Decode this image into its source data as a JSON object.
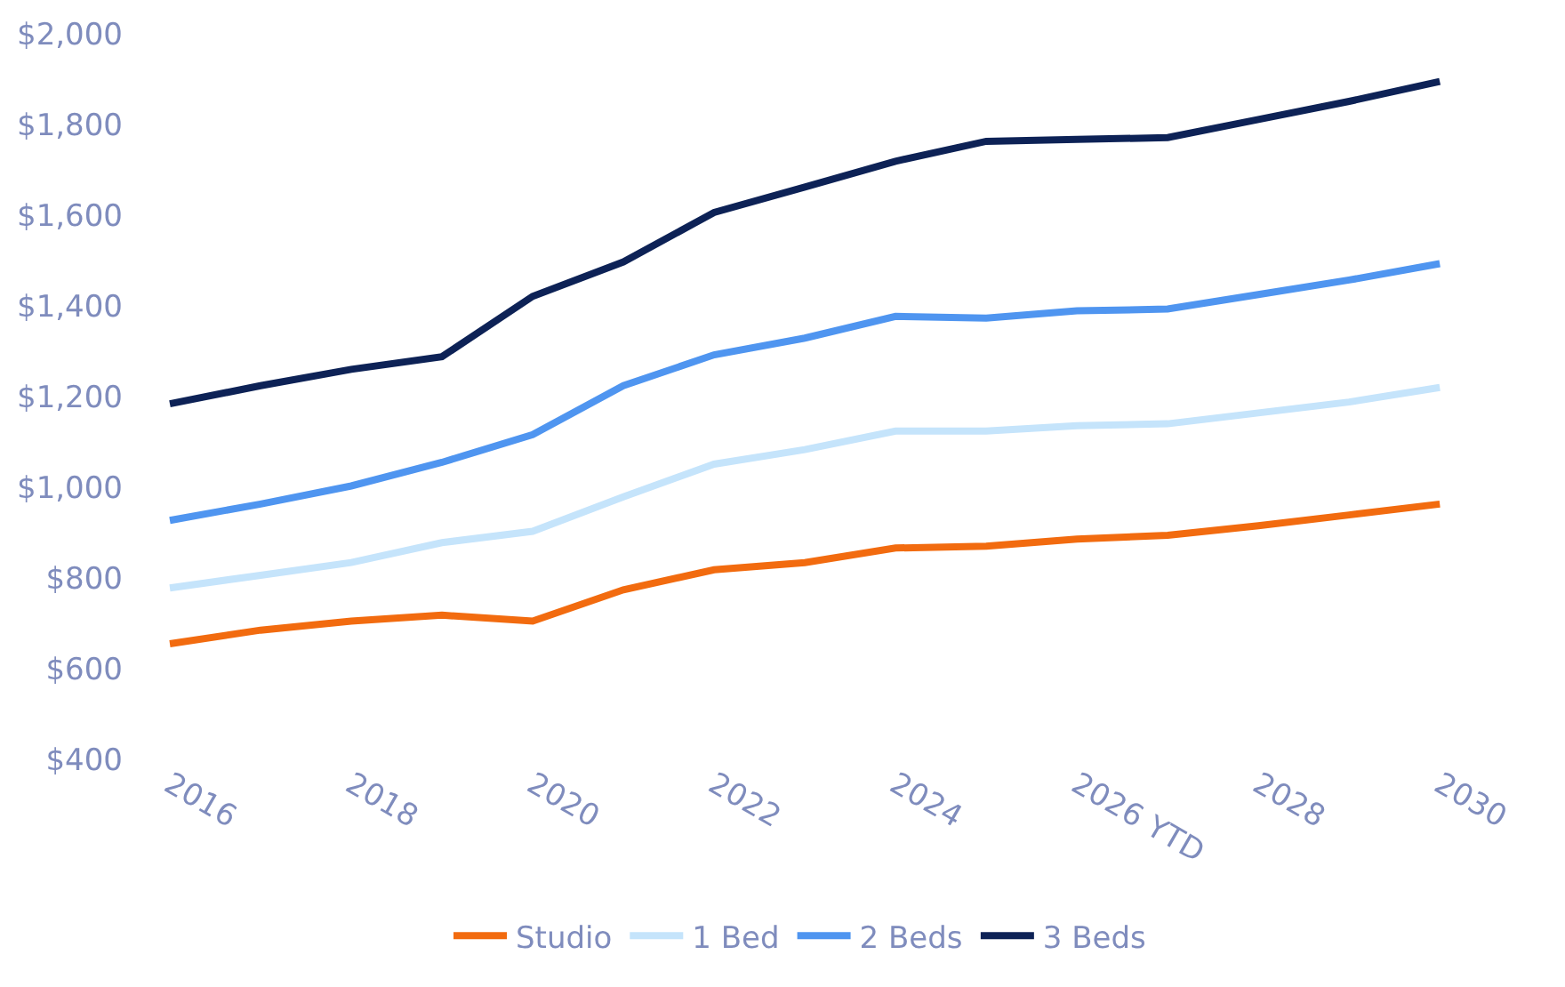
{
  "chart_data": {
    "type": "line",
    "categories": [
      "2016",
      null,
      "2018",
      null,
      "2020",
      null,
      "2022",
      null,
      "2024",
      null,
      "2026 YTD",
      null,
      "2028",
      null,
      "2030"
    ],
    "series": [
      {
        "name": "Studio",
        "color": "#f26b0f",
        "values": [
          655,
          685,
          705,
          718,
          705,
          774,
          818,
          834,
          866,
          870,
          886,
          894,
          915,
          939,
          963
        ]
      },
      {
        "name": "1 Bed",
        "color": "#c5e4fb",
        "values": [
          778,
          806,
          834,
          878,
          903,
          979,
          1051,
          1083,
          1124,
          1124,
          1136,
          1140,
          1164,
          1188,
          1220
        ]
      },
      {
        "name": "2 Beds",
        "color": "#4f95f0",
        "values": [
          927,
          963,
          1003,
          1055,
          1116,
          1224,
          1292,
          1329,
          1377,
          1373,
          1389,
          1393,
          1425,
          1457,
          1493
        ]
      },
      {
        "name": "3 Beds",
        "color": "#0d2256",
        "values": [
          1184,
          1224,
          1260,
          1288,
          1421,
          1497,
          1606,
          1662,
          1719,
          1763,
          1767,
          1771,
          1811,
          1851,
          1895
        ]
      }
    ],
    "ylim": [
      400,
      2000
    ],
    "yticks": [
      {
        "value": 400,
        "label": "$400"
      },
      {
        "value": 600,
        "label": "$600"
      },
      {
        "value": 800,
        "label": "$800"
      },
      {
        "value": 1000,
        "label": "$1,000"
      },
      {
        "value": 1200,
        "label": "$1,200"
      },
      {
        "value": 1400,
        "label": "$1,400"
      },
      {
        "value": 1600,
        "label": "$1,600"
      },
      {
        "value": 1800,
        "label": "$1,800"
      },
      {
        "value": 2000,
        "label": "$2,000"
      }
    ],
    "legend": "bottom",
    "marker": "none",
    "line_style": "solid"
  }
}
